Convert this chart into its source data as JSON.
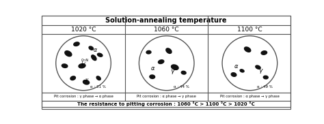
{
  "title": "Solution-annealing temperature",
  "temps": [
    "1020 °C",
    "1060 °C",
    "1100 °C"
  ],
  "alpha_pcts": [
    "α : 31 %",
    "α : 44 %",
    "α : 49 %"
  ],
  "pit_labels": [
    "Pit corrosion : γ phase → α phase",
    "Pit corrosion : α phase → γ phase",
    "Pit corrosion : α phase → γ phase"
  ],
  "bottom_text": "The resistance to pitting corrosion : 1060 °C > 1100 °C > 1020 °C",
  "c_dark": "#555555",
  "c_med": "#888888",
  "c_light": "#aaaaaa",
  "c_black": "#111111",
  "c_white": "#ffffff",
  "c_border": "#555555",
  "c_bg": "#e8e8e8"
}
